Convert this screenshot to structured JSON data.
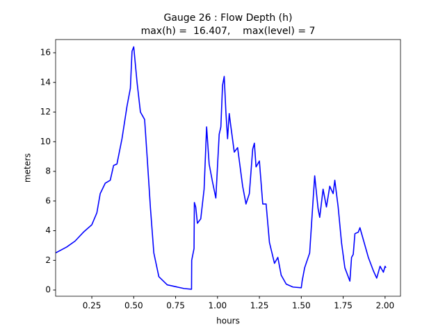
{
  "chart_data": {
    "type": "line",
    "title": "Gauge 26 : Flow Depth (h)",
    "subtitle": "max(h) =  16.407,    max(level) = 7",
    "x_label": "hours",
    "y_label": "meters",
    "xlim": [
      0.034,
      2.092
    ],
    "ylim": [
      -0.42,
      16.89
    ],
    "xticks": [
      0.25,
      {
        "value": 0.5,
        "label": "0.50"
      },
      0.75,
      {
        "value": 1.0,
        "label": "1.00"
      },
      1.25,
      {
        "value": 1.5,
        "label": "1.50"
      },
      1.75,
      {
        "value": 2.0,
        "label": "2.00"
      }
    ],
    "yticks": [
      0,
      2,
      4,
      6,
      8,
      10,
      12,
      14,
      16
    ],
    "grid": false,
    "series": [
      {
        "name": "h",
        "color": "#0000ff",
        "x": [
          0.034,
          0.1,
          0.15,
          0.2,
          0.25,
          0.28,
          0.3,
          0.33,
          0.36,
          0.38,
          0.4,
          0.43,
          0.46,
          0.48,
          0.49,
          0.5,
          0.52,
          0.54,
          0.555,
          0.565,
          0.58,
          0.6,
          0.62,
          0.65,
          0.7,
          0.8,
          0.845,
          0.846,
          0.86,
          0.862,
          0.87,
          0.88,
          0.9,
          0.92,
          0.935,
          0.95,
          0.97,
          0.99,
          1.01,
          1.02,
          1.03,
          1.04,
          1.05,
          1.06,
          1.07,
          1.08,
          1.1,
          1.12,
          1.15,
          1.17,
          1.19,
          1.21,
          1.22,
          1.23,
          1.25,
          1.27,
          1.29,
          1.31,
          1.34,
          1.36,
          1.38,
          1.41,
          1.45,
          1.5,
          1.505,
          1.52,
          1.55,
          1.57,
          1.58,
          1.6,
          1.61,
          1.63,
          1.65,
          1.67,
          1.69,
          1.7,
          1.72,
          1.74,
          1.76,
          1.79,
          1.8,
          1.81,
          1.82,
          1.84,
          1.85,
          1.88,
          1.9,
          1.93,
          1.95,
          1.97,
          1.99,
          2.0,
          2.005
        ],
        "values": [
          2.5,
          2.9,
          3.3,
          3.9,
          4.4,
          5.2,
          6.5,
          7.2,
          7.4,
          8.4,
          8.5,
          10.2,
          12.4,
          13.6,
          16.1,
          16.4,
          14.0,
          12.0,
          11.7,
          11.5,
          9.0,
          5.5,
          2.5,
          0.9,
          0.35,
          0.1,
          0.05,
          2.0,
          2.8,
          5.9,
          5.6,
          4.5,
          4.8,
          6.8,
          11.0,
          8.5,
          7.3,
          6.2,
          10.5,
          11.0,
          13.8,
          14.4,
          12.0,
          10.2,
          11.9,
          11.0,
          9.3,
          9.6,
          7.0,
          5.8,
          6.5,
          9.5,
          9.9,
          8.3,
          8.7,
          5.8,
          5.8,
          3.2,
          1.8,
          2.2,
          1.0,
          0.4,
          0.2,
          0.15,
          0.6,
          1.5,
          2.5,
          6.0,
          7.7,
          5.5,
          4.9,
          6.8,
          5.6,
          7.0,
          6.5,
          7.4,
          5.6,
          3.2,
          1.5,
          0.6,
          2.2,
          2.4,
          3.8,
          3.9,
          4.2,
          3.0,
          2.2,
          1.3,
          0.8,
          1.6,
          1.2,
          1.6,
          1.5
        ]
      }
    ]
  }
}
